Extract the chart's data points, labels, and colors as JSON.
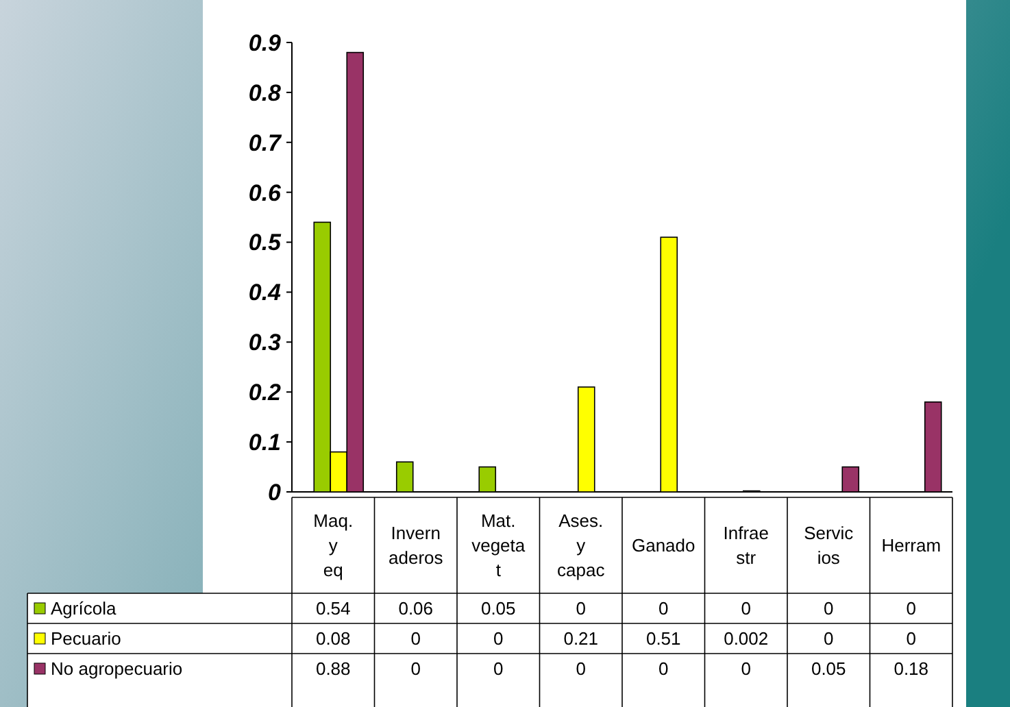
{
  "chart_data": {
    "type": "bar",
    "categories": [
      "Maq. y eq",
      "Invernaderos",
      "Mat. vegetat",
      "Ases. y capac",
      "Ganado",
      "Infraestr",
      "Servicios",
      "Herram"
    ],
    "series": [
      {
        "name": "Agrícola",
        "color": "#99cc00",
        "values": [
          0.54,
          0.06,
          0.05,
          0,
          0,
          0,
          0,
          0
        ]
      },
      {
        "name": "Pecuario",
        "color": "#ffff00",
        "values": [
          0.08,
          0,
          0,
          0.21,
          0.51,
          0.002,
          0,
          0
        ]
      },
      {
        "name": "No agropecuario",
        "color": "#993366",
        "values": [
          0.88,
          0,
          0,
          0,
          0,
          0,
          0.05,
          0.18
        ]
      }
    ],
    "ylim": [
      0,
      0.9
    ],
    "yticks": [
      0,
      0.1,
      0.2,
      0.3,
      0.4,
      0.5,
      0.6,
      0.7,
      0.8,
      0.9
    ],
    "data_labels": true,
    "legend": "bottom",
    "grid": false
  }
}
